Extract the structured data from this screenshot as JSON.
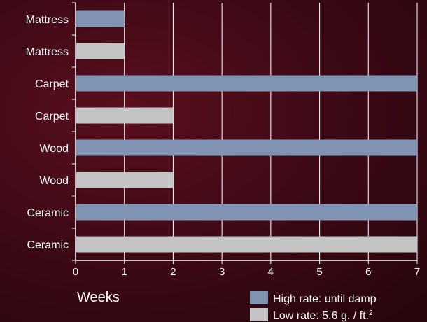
{
  "chart_data": {
    "type": "bar",
    "orientation": "horizontal",
    "title": "",
    "xlabel": "Weeks",
    "ylabel": "",
    "xlim": [
      0,
      7
    ],
    "xticks": [
      0,
      1,
      2,
      3,
      4,
      5,
      6,
      7
    ],
    "grid": "vertical",
    "legend_position": "bottom-right",
    "bars": [
      {
        "category": "Mattress",
        "series": "high",
        "value": 1
      },
      {
        "category": "Mattress",
        "series": "low",
        "value": 1
      },
      {
        "category": "Carpet",
        "series": "high",
        "value": 7
      },
      {
        "category": "Carpet",
        "series": "low",
        "value": 2
      },
      {
        "category": "Wood",
        "series": "high",
        "value": 7
      },
      {
        "category": "Wood",
        "series": "low",
        "value": 2
      },
      {
        "category": "Ceramic",
        "series": "high",
        "value": 7
      },
      {
        "category": "Ceramic",
        "series": "low",
        "value": 7
      }
    ],
    "series": [
      {
        "key": "high",
        "name": "High rate: until damp",
        "color": "#8294b4"
      },
      {
        "key": "low",
        "name": "Low rate: 5.6 g. / ft.",
        "name_superscript": "2",
        "color": "#c4c4c4"
      }
    ]
  }
}
